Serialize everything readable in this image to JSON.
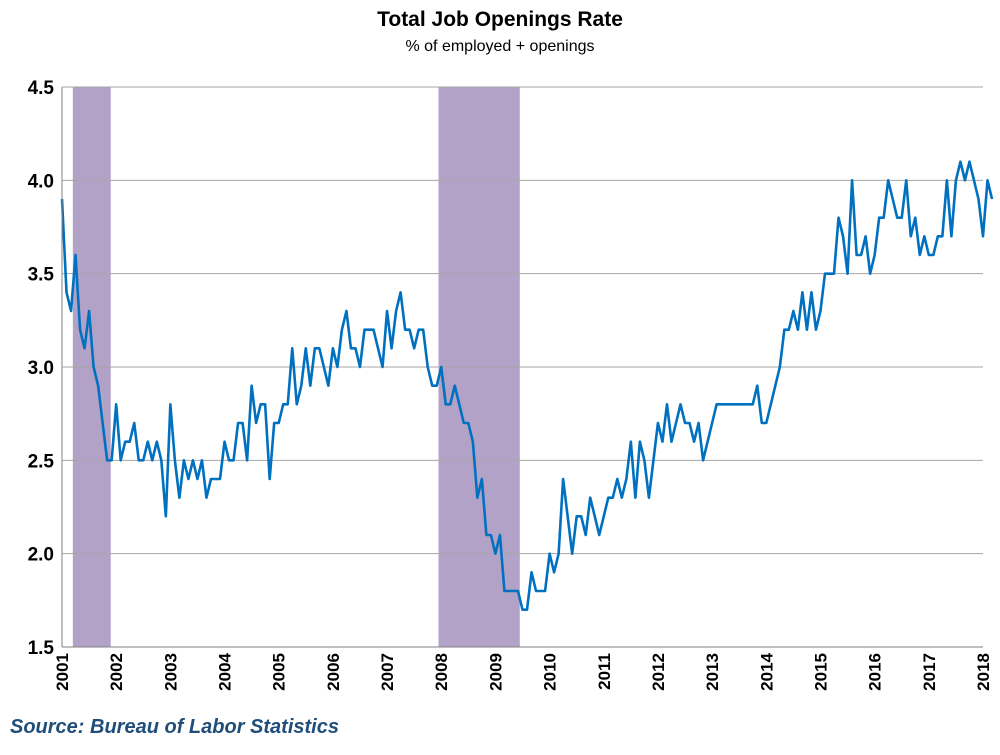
{
  "title": "Total Job Openings Rate",
  "subtitle": "% of employed + openings",
  "source": "Source: Bureau of Labor Statistics",
  "colors": {
    "line": "#0070C0",
    "recession": "#B3A2C7",
    "grid": "#A6A6A6",
    "source_text": "#1F4E79"
  },
  "chart_data": {
    "type": "line",
    "title": "Total Job Openings Rate",
    "subtitle": "% of employed + openings",
    "xlabel": "",
    "ylabel": "",
    "xlim": [
      2001.0,
      2018.0
    ],
    "ylim": [
      1.5,
      4.5
    ],
    "yticks": [
      1.5,
      2.0,
      2.5,
      3.0,
      3.5,
      4.0,
      4.5
    ],
    "ytick_labels": [
      "1.5",
      "2.0",
      "2.5",
      "3.0",
      "3.5",
      "4.0",
      "4.5"
    ],
    "xtick_labels": [
      "2001",
      "2002",
      "2003",
      "2004",
      "2005",
      "2006",
      "2007",
      "2008",
      "2009",
      "2010",
      "2011",
      "2012",
      "2013",
      "2014",
      "2015",
      "2016",
      "2017",
      "2018"
    ],
    "grid": "horizontal",
    "legend": "none",
    "recessions": [
      {
        "start": 2001.2,
        "end": 2001.9
      },
      {
        "start": 2007.95,
        "end": 2009.45
      }
    ],
    "series": [
      {
        "x_start": 2001.0,
        "x_step": 0.0833333,
        "values": [
          3.9,
          3.4,
          3.3,
          3.6,
          3.2,
          3.1,
          3.3,
          3.0,
          2.9,
          2.7,
          2.5,
          2.5,
          2.8,
          2.5,
          2.6,
          2.6,
          2.7,
          2.5,
          2.5,
          2.6,
          2.5,
          2.6,
          2.5,
          2.2,
          2.8,
          2.5,
          2.3,
          2.5,
          2.4,
          2.5,
          2.4,
          2.5,
          2.3,
          2.4,
          2.4,
          2.4,
          2.6,
          2.5,
          2.5,
          2.7,
          2.7,
          2.5,
          2.9,
          2.7,
          2.8,
          2.8,
          2.4,
          2.7,
          2.7,
          2.8,
          2.8,
          3.1,
          2.8,
          2.9,
          3.1,
          2.9,
          3.1,
          3.1,
          3.0,
          2.9,
          3.1,
          3.0,
          3.2,
          3.3,
          3.1,
          3.1,
          3.0,
          3.2,
          3.2,
          3.2,
          3.1,
          3.0,
          3.3,
          3.1,
          3.3,
          3.4,
          3.2,
          3.2,
          3.1,
          3.2,
          3.2,
          3.0,
          2.9,
          2.9,
          3.0,
          2.8,
          2.8,
          2.9,
          2.8,
          2.7,
          2.7,
          2.6,
          2.3,
          2.4,
          2.1,
          2.1,
          2.0,
          2.1,
          1.8,
          1.8,
          1.8,
          1.8,
          1.7,
          1.7,
          1.9,
          1.8,
          1.8,
          1.8,
          2.0,
          1.9,
          2.0,
          2.4,
          2.2,
          2.0,
          2.2,
          2.2,
          2.1,
          2.3,
          2.2,
          2.1,
          2.2,
          2.3,
          2.3,
          2.4,
          2.3,
          2.4,
          2.6,
          2.3,
          2.6,
          2.5,
          2.3,
          2.5,
          2.7,
          2.6,
          2.8,
          2.6,
          2.7,
          2.8,
          2.7,
          2.7,
          2.6,
          2.7,
          2.5,
          2.6,
          2.7,
          2.8,
          2.8,
          2.8,
          2.8,
          2.8,
          2.8,
          2.8,
          2.8,
          2.8,
          2.9,
          2.7,
          2.7,
          2.8,
          2.9,
          3.0,
          3.2,
          3.2,
          3.3,
          3.2,
          3.4,
          3.2,
          3.4,
          3.2,
          3.3,
          3.5,
          3.5,
          3.5,
          3.8,
          3.7,
          3.5,
          4.0,
          3.6,
          3.6,
          3.7,
          3.5,
          3.6,
          3.8,
          3.8,
          4.0,
          3.9,
          3.8,
          3.8,
          4.0,
          3.7,
          3.8,
          3.6,
          3.7,
          3.6,
          3.6,
          3.7,
          3.7,
          4.0,
          3.7,
          4.0,
          4.1,
          4.0,
          4.1,
          4.0,
          3.9,
          3.7,
          4.0,
          3.9
        ]
      }
    ]
  }
}
